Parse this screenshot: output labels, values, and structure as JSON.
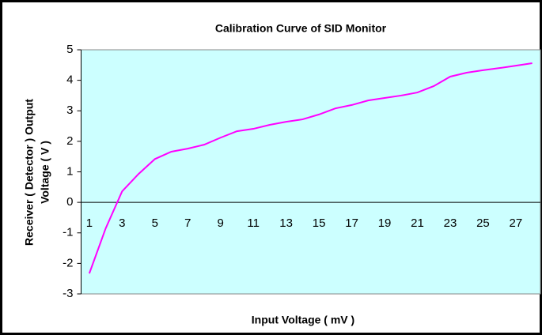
{
  "chart_data": {
    "type": "line",
    "title": "Calibration Curve of SID Monitor",
    "x_label": "Input Voltage ( mV )",
    "y_label": [
      "Receiver ( Detector ) Output",
      "Voltage ( V )"
    ],
    "categories": [
      1,
      null,
      3,
      null,
      5,
      null,
      7,
      null,
      9,
      null,
      11,
      null,
      13,
      null,
      15,
      null,
      17,
      null,
      19,
      null,
      21,
      null,
      23,
      null,
      25,
      null,
      27,
      null
    ],
    "series": [
      {
        "name": "Output Voltage",
        "color": "#ff00ff",
        "values": [
          -2.33,
          -0.85,
          0.36,
          0.93,
          1.42,
          1.66,
          1.76,
          1.89,
          2.12,
          2.33,
          2.41,
          2.54,
          2.64,
          2.72,
          2.88,
          3.08,
          3.19,
          3.34,
          3.42,
          3.5,
          3.6,
          3.81,
          4.12,
          4.25,
          4.33,
          4.4,
          4.48,
          4.56
        ]
      }
    ],
    "ylim": [
      -3,
      5
    ],
    "yticks": [
      -3,
      -2,
      -1,
      0,
      1,
      2,
      3,
      4,
      5
    ],
    "plot_background": "#ccffff"
  }
}
